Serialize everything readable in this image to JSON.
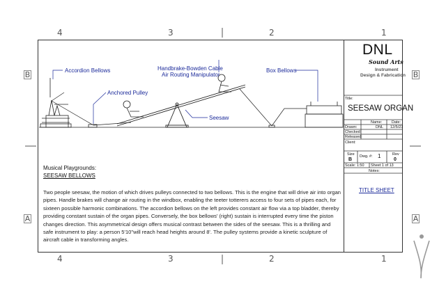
{
  "zones": {
    "top": [
      "4",
      "3",
      "2",
      "1"
    ],
    "bottom": [
      "4",
      "3",
      "2",
      "1"
    ],
    "left": [
      "B",
      "A"
    ],
    "right": [
      "B",
      "A"
    ]
  },
  "diagram_labels": {
    "accordion_bellows": "Accordion Bellows",
    "anchored_pulley": "Anchored Pulley",
    "handbrake_line1": "Handbrake-Bowden Cable",
    "handbrake_line2": "Air Routing Manipulator",
    "box_bellows": "Box Bellows",
    "seesaw": "Seesaw"
  },
  "description": {
    "heading": "Musical Playgrounds:",
    "subheading": "SEESAW BELLOWS",
    "paragraph": "Two people seesaw, the motion of which drives pulleys connected to two bellows.  This is the engine that will drive air into organ pipes. Handle brakes will change air routing in the windbox, enabling the teeter totterers access to four sets of pipes each, for sixteen possible harmonic combinations.  The accordion bellows on the left provides constant air flow via a top bladder, thereby providing constant sustain of the organ pipes.  Conversely, the box bellows' (right) sustain is interrupted every time the piston changes direction.  This asymmetrical design offers musical contrast between the sides of the seesaw. This is a thrilling and safe instrument to play: a person 5'10\"will reach head heights around 8'.  The pulley systems provide a kinetic sculpture of aircraft cable in transforming angles."
  },
  "title_block": {
    "company_name": "DNL",
    "company_tagline": "Sound Arts",
    "company_line1": "Instrument",
    "company_line2": "Design & Fabrication",
    "title_label": "Title:",
    "title_value": "SEESAW ORGAN",
    "name_header": "Name:",
    "date_header": "Date:",
    "drawn_label": "Drawn:",
    "drawn_name": "DNL",
    "drawn_date": "12/5/23",
    "checked_label": "Checked:",
    "released_label": "Released:",
    "client_label": "Client:",
    "size_label": "Size",
    "size_value": "B",
    "dwg_label": "Dwg. #:",
    "dwg_value": "1",
    "rev_label": "Rev",
    "rev_value": "0",
    "scale_text": "Scale: 1:50",
    "sheet_text": "Sheet 1 of 13",
    "notes_label": "Notes:",
    "title_sheet": "TITLE SHEET"
  },
  "colors": {
    "annotation": "#1b2a9a",
    "line": "#222222"
  }
}
